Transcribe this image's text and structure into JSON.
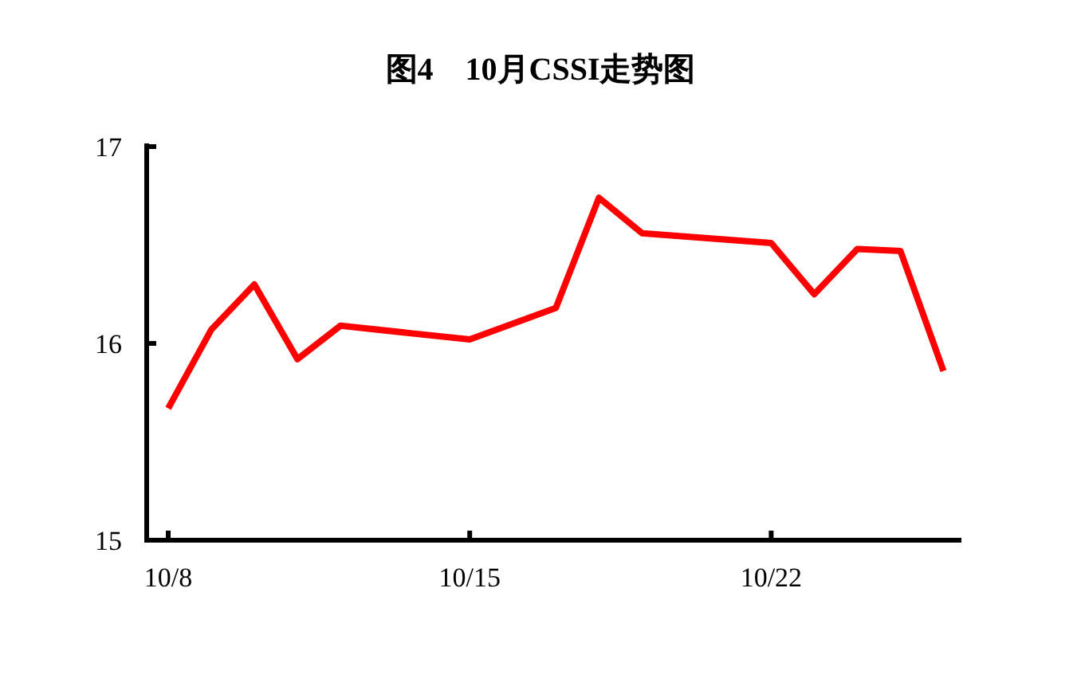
{
  "chart_data": {
    "type": "line",
    "title": "图4　10月CSSI走势图",
    "x": [
      "--10-08",
      "--10-09",
      "--10-10",
      "--10-11",
      "--10-12",
      "--10-15",
      "--10-16",
      "--10-17",
      "--10-18",
      "--10-19",
      "--10-22",
      "--10-23",
      "--10-24",
      "--10-25",
      "--10-26"
    ],
    "series": [
      {
        "color": "#ff0000",
        "values": [
          15.67,
          16.07,
          16.3,
          15.92,
          16.09,
          16.02,
          16.1,
          16.18,
          16.74,
          16.56,
          16.51,
          16.25,
          16.48,
          16.47,
          15.86
        ]
      }
    ],
    "xlim": [
      "--10-07T12:00",
      "--10-26T10:00"
    ],
    "xticks": [
      {
        "value": "--10-08",
        "label": "10/8"
      },
      {
        "value": "--10-15",
        "label": "10/15"
      },
      {
        "value": "--10-22",
        "label": "10/22"
      }
    ],
    "ylim": [
      15,
      17
    ],
    "yticks": [
      15,
      16,
      17
    ],
    "grid": false,
    "marker": "none",
    "line_style": "solid"
  }
}
